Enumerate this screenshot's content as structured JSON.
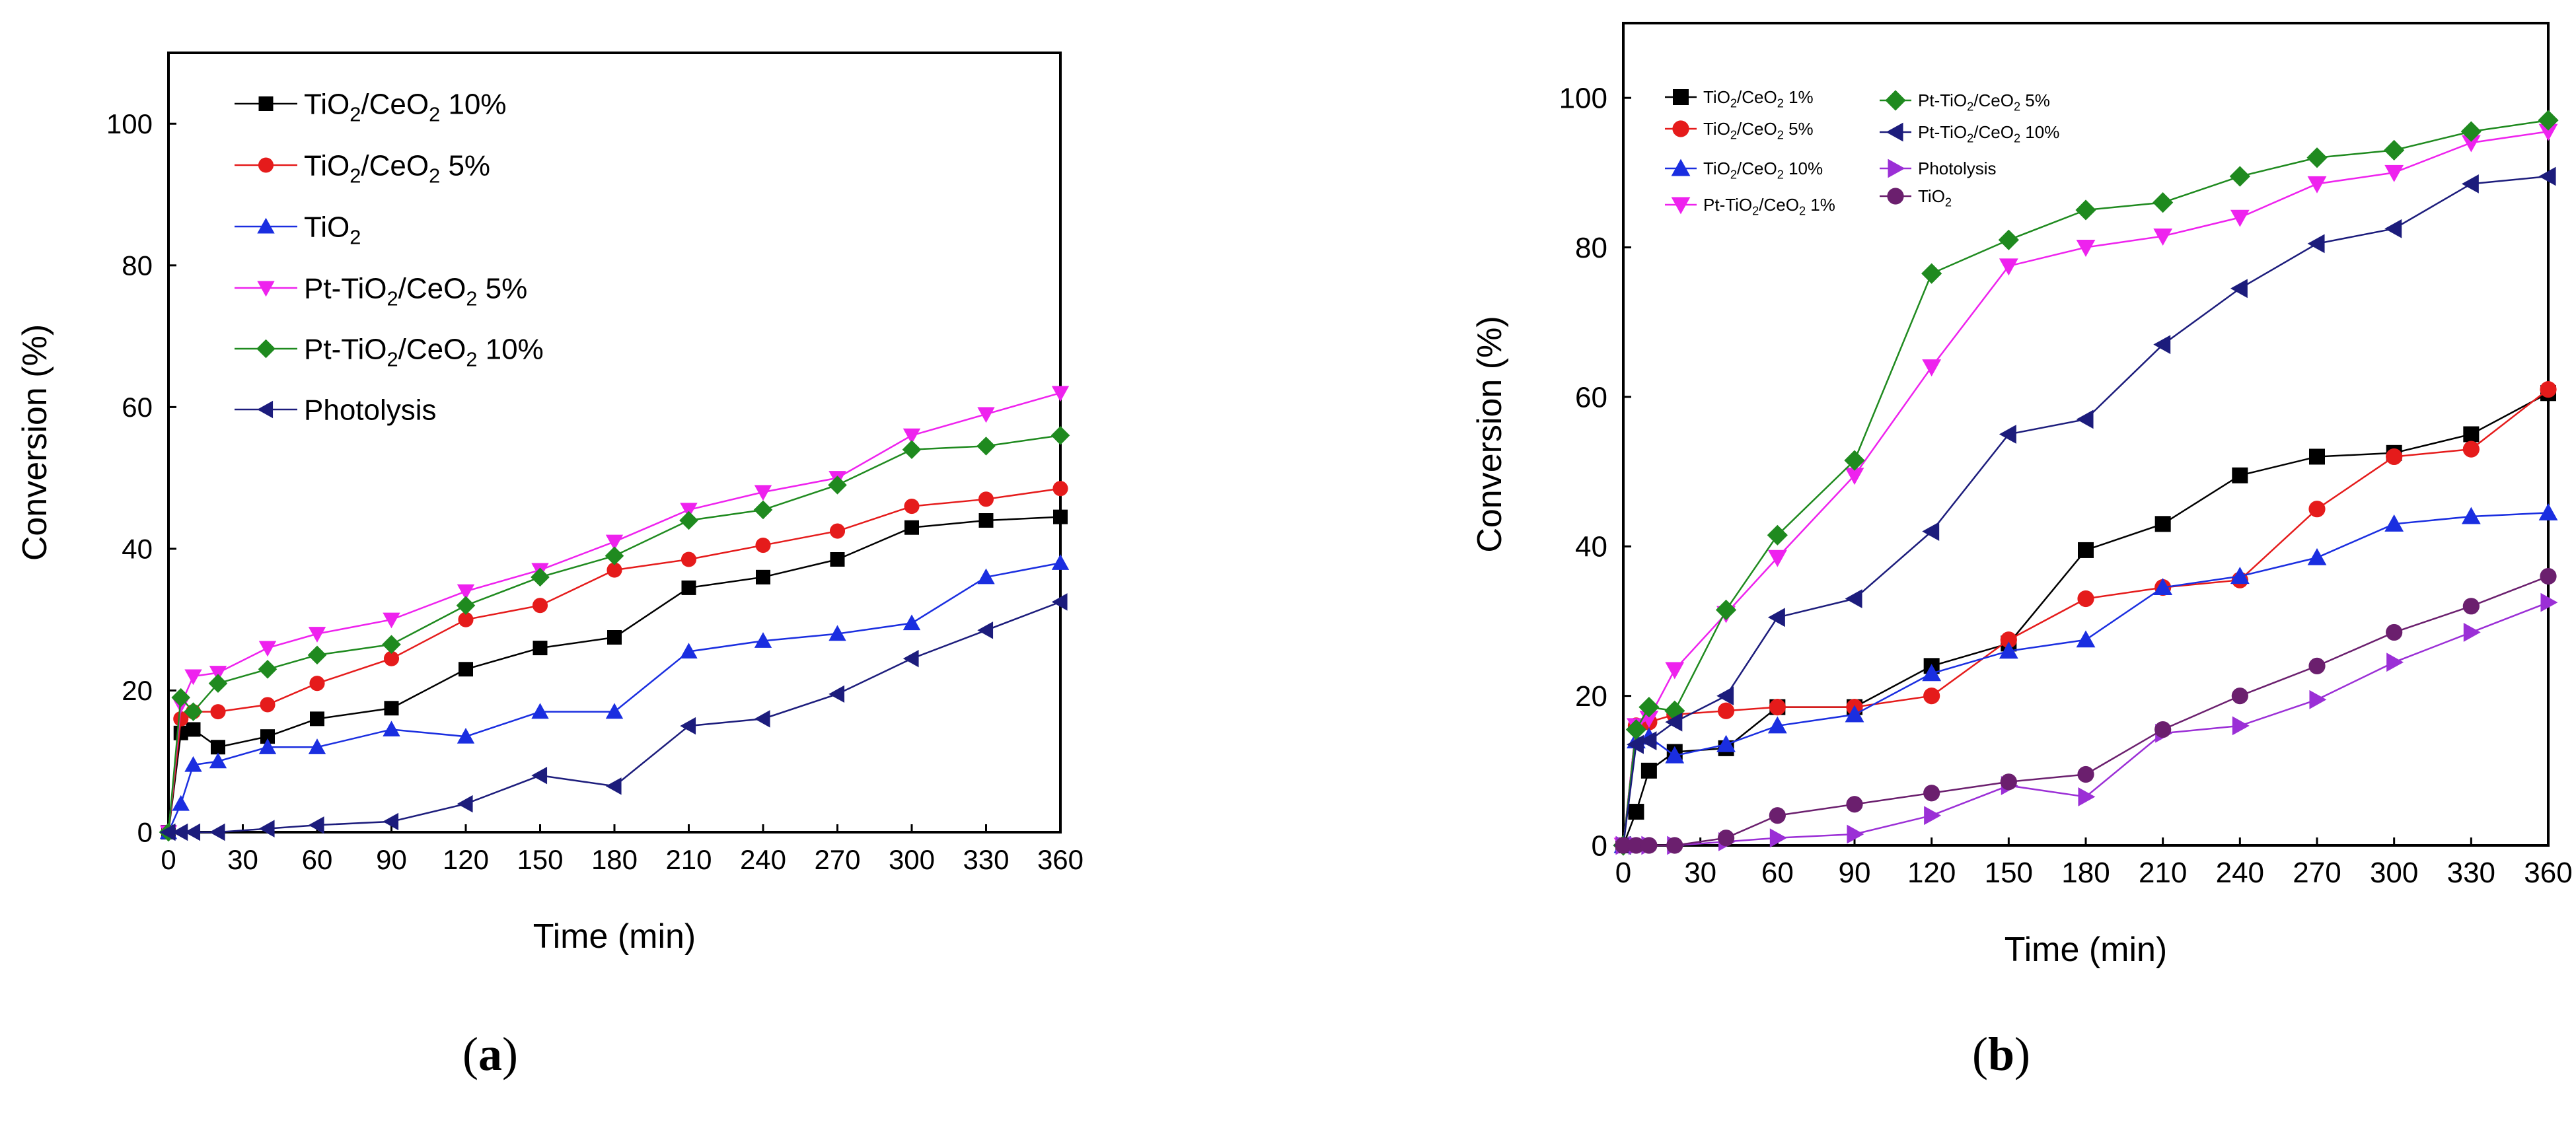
{
  "panel_labels": {
    "a": "a",
    "b": "b"
  },
  "chart_data": [
    {
      "type": "line",
      "xlabel": "Time (min)",
      "ylabel": "Conversion (%)",
      "xlim": [
        0,
        360
      ],
      "ylim": [
        0,
        110
      ],
      "xticks": [
        0,
        30,
        60,
        90,
        120,
        150,
        180,
        210,
        240,
        270,
        300,
        330,
        360
      ],
      "yticks": [
        0,
        20,
        40,
        60,
        80,
        100
      ],
      "grid": false,
      "legend_position": "top-left",
      "series": [
        {
          "name": "TiO2/CeO2 10%",
          "legend": [
            "TiO",
            "2",
            "/CeO",
            "2",
            " 10%"
          ],
          "color": "#000000",
          "marker": "square",
          "x": [
            0,
            5,
            10,
            20,
            40,
            60,
            90,
            120,
            150,
            180,
            210,
            240,
            270,
            300,
            330,
            360
          ],
          "y": [
            0,
            14,
            14.5,
            12,
            13.5,
            16,
            17.5,
            23,
            26,
            27.5,
            34.5,
            36,
            38.5,
            43,
            44,
            44.5
          ]
        },
        {
          "name": "TiO2/CeO2 5%",
          "legend": [
            "TiO",
            "2",
            "/CeO",
            "2",
            " 5%"
          ],
          "color": "#e51b1b",
          "marker": "circle",
          "x": [
            0,
            5,
            10,
            20,
            40,
            60,
            90,
            120,
            150,
            180,
            210,
            240,
            270,
            300,
            330,
            360
          ],
          "y": [
            0,
            16,
            17,
            17,
            18,
            21,
            24.5,
            30,
            32,
            37,
            38.5,
            40.5,
            42.5,
            46,
            47,
            48.5
          ]
        },
        {
          "name": "TiO2",
          "legend": [
            "TiO",
            "2",
            "",
            "",
            ""
          ],
          "color": "#1a2ee0",
          "marker": "triangle-up",
          "x": [
            0,
            5,
            10,
            20,
            40,
            60,
            90,
            120,
            150,
            180,
            210,
            240,
            270,
            300,
            330,
            360
          ],
          "y": [
            0,
            4,
            9.5,
            10,
            12,
            12,
            14.5,
            13.5,
            17,
            17,
            25.5,
            27,
            28,
            29.5,
            36,
            38
          ]
        },
        {
          "name": "Pt-TiO2/CeO2 5%",
          "legend": [
            "Pt-TiO",
            "2",
            "/CeO",
            "2",
            " 5%"
          ],
          "color": "#ee22ee",
          "marker": "triangle-down",
          "x": [
            0,
            5,
            10,
            20,
            40,
            60,
            90,
            120,
            150,
            180,
            210,
            240,
            270,
            300,
            330,
            360
          ],
          "y": [
            0,
            18,
            22,
            22.5,
            26,
            28,
            30,
            34,
            37,
            41,
            45.5,
            48,
            50,
            56,
            59,
            62
          ]
        },
        {
          "name": "Pt-TiO2/CeO2 10%",
          "legend": [
            "Pt-TiO",
            "2",
            "/CeO",
            "2",
            " 10%"
          ],
          "color": "#1f8a1f",
          "marker": "diamond",
          "x": [
            0,
            5,
            10,
            20,
            40,
            60,
            90,
            120,
            150,
            180,
            210,
            240,
            270,
            300,
            330,
            360
          ],
          "y": [
            0,
            19,
            17,
            21,
            23,
            25,
            26.5,
            32,
            36,
            39,
            44,
            45.5,
            49,
            54,
            54.5,
            56
          ]
        },
        {
          "name": "Photolysis",
          "legend": [
            "Photolysis",
            "",
            "",
            "",
            ""
          ],
          "color": "#1c1c7c",
          "marker": "triangle-left",
          "x": [
            0,
            5,
            10,
            20,
            40,
            60,
            90,
            120,
            150,
            180,
            210,
            240,
            270,
            300,
            330,
            360
          ],
          "y": [
            0,
            0,
            0,
            0,
            0.5,
            1,
            1.5,
            4,
            8,
            6.5,
            15,
            16,
            19.5,
            24.5,
            28.5,
            32.5
          ]
        }
      ]
    },
    {
      "type": "line",
      "xlabel": "Time (min)",
      "ylabel": "Conversion (%)",
      "xlim": [
        0,
        360
      ],
      "ylim": [
        0,
        110
      ],
      "xticks": [
        0,
        30,
        60,
        90,
        120,
        150,
        180,
        210,
        240,
        270,
        300,
        330,
        360
      ],
      "yticks": [
        0,
        20,
        40,
        60,
        80,
        100
      ],
      "grid": false,
      "legend_position": "top-left",
      "series": [
        {
          "name": "TiO2/CeO2 1%",
          "legend": [
            "TiO",
            "2",
            "/CeO",
            "2",
            " 1%"
          ],
          "color": "#000000",
          "marker": "square",
          "x": [
            0,
            5,
            10,
            20,
            40,
            60,
            90,
            120,
            150,
            180,
            210,
            240,
            270,
            300,
            330,
            360
          ],
          "y": [
            0,
            4.5,
            10,
            12.5,
            13,
            18.5,
            18.5,
            24,
            27,
            39.5,
            43,
            49.5,
            52,
            52.5,
            55,
            60.5
          ]
        },
        {
          "name": "TiO2/CeO2 5%",
          "legend": [
            "TiO",
            "2",
            "/CeO",
            "2",
            " 5%"
          ],
          "color": "#e51b1b",
          "marker": "circle",
          "x": [
            0,
            5,
            10,
            20,
            40,
            60,
            90,
            120,
            150,
            180,
            210,
            240,
            270,
            300,
            330,
            360
          ],
          "y": [
            0,
            16,
            16.5,
            17.5,
            18,
            18.5,
            18.5,
            20,
            27.5,
            33,
            34.5,
            35.5,
            45,
            52,
            53,
            61
          ]
        },
        {
          "name": "TiO2/CeO2 10%",
          "legend": [
            "TiO",
            "2",
            "/CeO",
            "2",
            " 10%"
          ],
          "color": "#1a2ee0",
          "marker": "triangle-up",
          "x": [
            0,
            5,
            10,
            20,
            40,
            60,
            90,
            120,
            150,
            180,
            210,
            240,
            270,
            300,
            330,
            360
          ],
          "y": [
            0,
            14,
            14.5,
            12,
            13.5,
            16,
            17.5,
            23,
            26,
            27.5,
            34.5,
            36,
            38.5,
            43,
            44,
            44.5
          ]
        },
        {
          "name": "Pt-TiO2/CeO2 1%",
          "legend": [
            "Pt-TiO",
            "2",
            "/CeO",
            "2",
            " 1%"
          ],
          "color": "#ee22ee",
          "marker": "triangle-down",
          "x": [
            0,
            5,
            10,
            20,
            40,
            60,
            90,
            120,
            150,
            180,
            210,
            240,
            270,
            300,
            330,
            360
          ],
          "y": [
            0,
            16,
            17,
            23.5,
            31,
            38.5,
            49.5,
            64,
            77.5,
            80,
            81.5,
            84,
            88.5,
            90,
            94,
            95.5
          ]
        },
        {
          "name": "Pt-TiO2/CeO2 5%",
          "legend": [
            "Pt-TiO",
            "2",
            "/CeO",
            "2",
            " 5%"
          ],
          "color": "#1f8a1f",
          "marker": "diamond",
          "x": [
            0,
            5,
            10,
            20,
            40,
            60,
            90,
            120,
            150,
            180,
            210,
            240,
            270,
            300,
            330,
            360
          ],
          "y": [
            0,
            15.5,
            18.5,
            18,
            31.5,
            41.5,
            51.5,
            76.5,
            81,
            85,
            86,
            89.5,
            92,
            93,
            95.5,
            97
          ]
        },
        {
          "name": "Pt-TiO2/CeO2 10%",
          "legend": [
            "Pt-TiO",
            "2",
            "/CeO",
            "2",
            " 10%"
          ],
          "color": "#1c1c7c",
          "marker": "triangle-left",
          "x": [
            0,
            5,
            10,
            20,
            40,
            60,
            90,
            120,
            150,
            180,
            210,
            240,
            270,
            300,
            330,
            360
          ],
          "y": [
            0,
            13.5,
            14,
            16.5,
            20,
            30.5,
            33,
            42,
            55,
            57,
            67,
            74.5,
            80.5,
            82.5,
            88.5,
            89.5
          ]
        },
        {
          "name": "Photolysis",
          "legend": [
            "Photolysis",
            "",
            "",
            "",
            ""
          ],
          "color": "#9b2fd6",
          "marker": "triangle-right",
          "x": [
            0,
            5,
            10,
            20,
            40,
            60,
            90,
            120,
            150,
            180,
            210,
            240,
            270,
            300,
            330,
            360
          ],
          "y": [
            0,
            0,
            0,
            0,
            0.5,
            1,
            1.5,
            4,
            8,
            6.5,
            15,
            16,
            19.5,
            24.5,
            28.5,
            32.5
          ]
        },
        {
          "name": "TiO2",
          "legend": [
            "TiO",
            "2",
            "",
            "",
            ""
          ],
          "color": "#6b1f6e",
          "marker": "circle",
          "x": [
            0,
            5,
            10,
            20,
            40,
            60,
            90,
            120,
            150,
            180,
            210,
            240,
            270,
            300,
            330,
            360
          ],
          "y": [
            0,
            0,
            0,
            0,
            1,
            4,
            5.5,
            7,
            8.5,
            9.5,
            15.5,
            20,
            24,
            28.5,
            32,
            36
          ]
        }
      ]
    }
  ]
}
